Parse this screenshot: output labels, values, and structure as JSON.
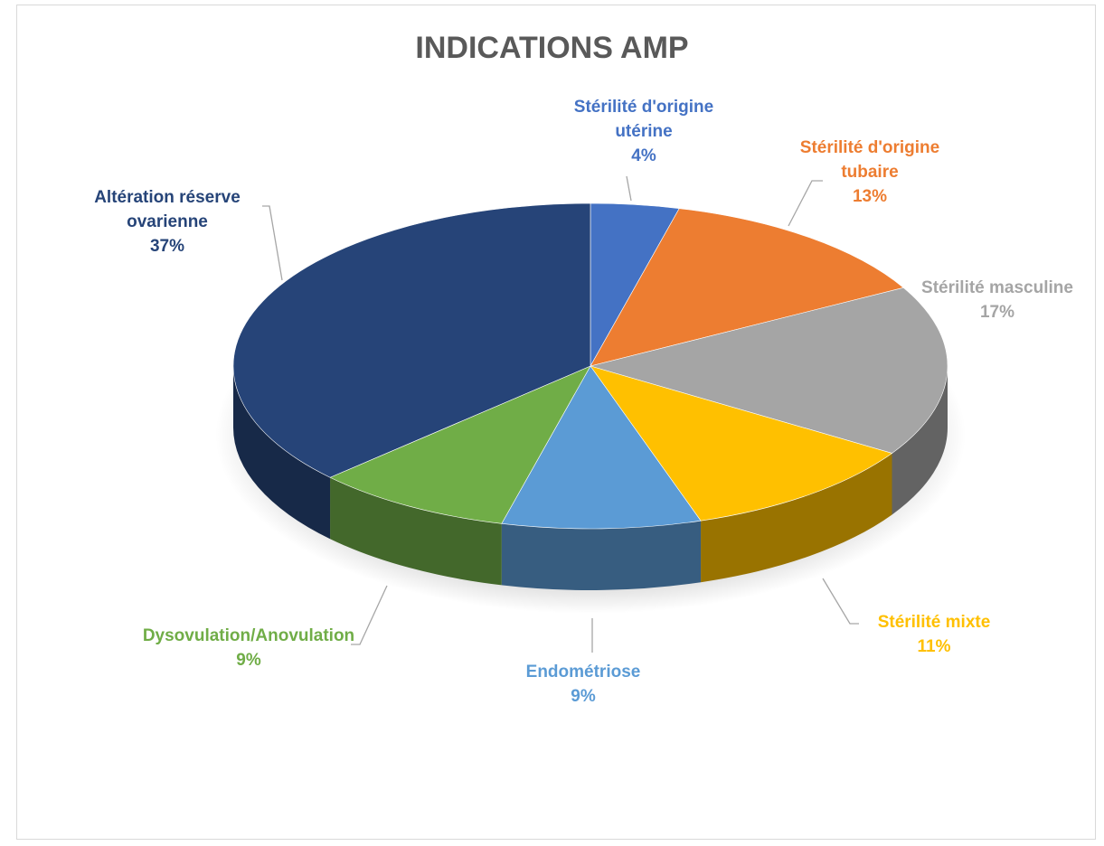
{
  "chart_data": {
    "type": "pie3d",
    "title": "INDICATIONS AMP",
    "categories": [
      "Stérilité d'origine utérine",
      "Stérilité d'origine tubaire",
      "Stérilité masculine",
      "Stérilité mixte",
      "Endométriose",
      "Dysovulation/Anovulation",
      "Altération réserve ovarienne"
    ],
    "values": [
      4,
      13,
      17,
      11,
      9,
      9,
      37
    ],
    "value_labels": [
      "4%",
      "13%",
      "17%",
      "11%",
      "9%",
      "9%",
      "37%"
    ],
    "colors": [
      "#4472c4",
      "#ed7d31",
      "#a5a5a5",
      "#ffc000",
      "#5b9bd5",
      "#70ad47",
      "#264478"
    ]
  }
}
